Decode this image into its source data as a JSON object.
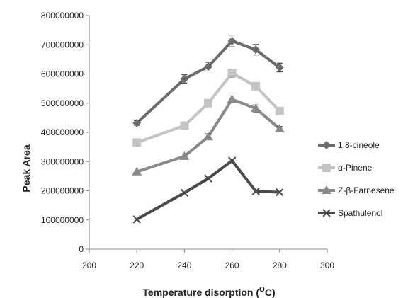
{
  "chart_data": {
    "type": "line",
    "xlabel": "Temperature disorption (",
    "xlabel_unit": "O",
    "xlabel_unit_tail": "C)",
    "ylabel": "Peak Area",
    "xlim": [
      200,
      300
    ],
    "ylim": [
      0,
      800000000
    ],
    "x_ticks": [
      200,
      220,
      240,
      260,
      280,
      300
    ],
    "y_ticks": [
      0,
      100000000,
      200000000,
      300000000,
      400000000,
      500000000,
      600000000,
      700000000,
      800000000
    ],
    "x_tick_labels": [
      "200",
      "220",
      "240",
      "260",
      "280",
      "300"
    ],
    "y_tick_labels": [
      "0",
      "100000000",
      "200000000",
      "300000000",
      "400000000",
      "500000000",
      "600000000",
      "700000000",
      "800000000"
    ],
    "grid": false,
    "legend_position": "right",
    "x": [
      220,
      240,
      250,
      260,
      270,
      280
    ],
    "series": [
      {
        "name": "1,8-cineole",
        "marker": "diamond",
        "color": "#6b6b6b",
        "values": [
          432000000,
          583000000,
          625000000,
          713000000,
          683000000,
          622000000
        ],
        "errors": [
          8000000,
          14000000,
          15000000,
          20000000,
          18000000,
          15000000
        ]
      },
      {
        "name": "α-Pinene",
        "marker": "square",
        "color": "#c4c4c4",
        "values": [
          365000000,
          423000000,
          500000000,
          603000000,
          558000000,
          473000000
        ],
        "errors": [
          0,
          0,
          0,
          14000000,
          0,
          0
        ]
      },
      {
        "name": "Z-β-Farnesene",
        "marker": "triangle",
        "color": "#8a8a8a",
        "values": [
          265000000,
          318000000,
          385000000,
          513000000,
          482000000,
          412000000
        ],
        "errors": [
          0,
          8000000,
          10000000,
          12000000,
          12000000,
          8000000
        ]
      },
      {
        "name": "Spathulenol",
        "marker": "x",
        "color": "#4a4a4a",
        "values": [
          102000000,
          193000000,
          242000000,
          303000000,
          198000000,
          195000000
        ],
        "errors": [
          0,
          0,
          0,
          0,
          0,
          0
        ]
      }
    ]
  }
}
